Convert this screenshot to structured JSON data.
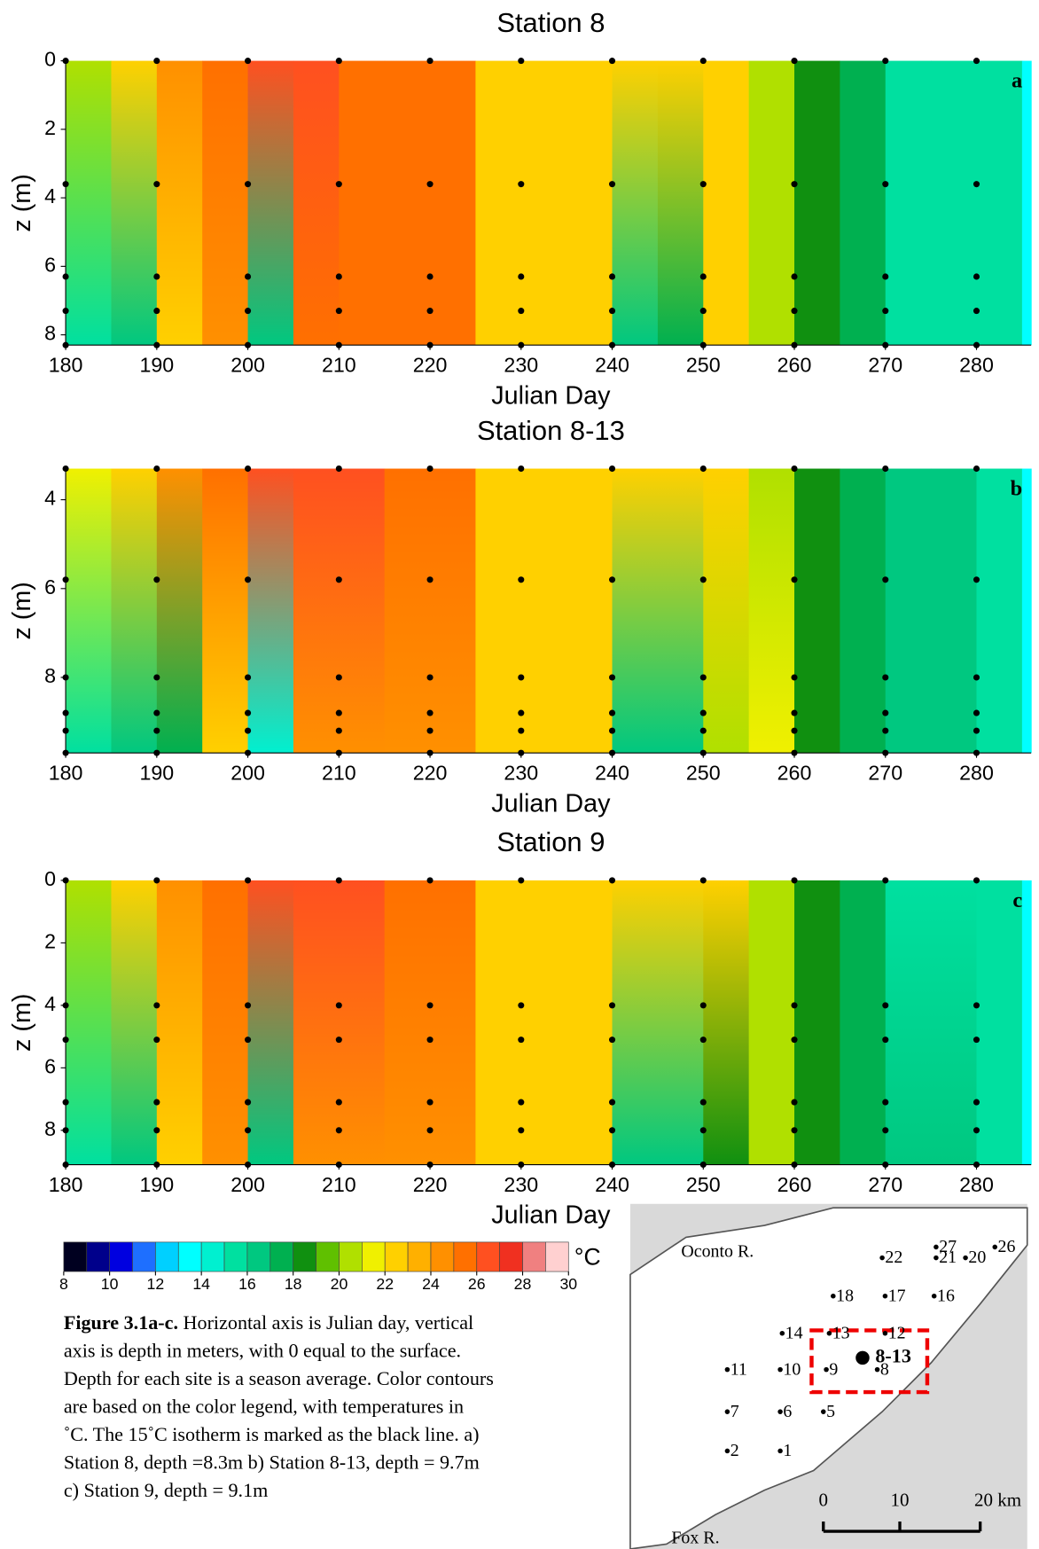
{
  "chart_data": [
    {
      "type": "heatmap",
      "title": "Station 8",
      "x_label": "Julian Day",
      "y_label": "z (m)",
      "panel_label": "a",
      "x": [
        180,
        185,
        190,
        195,
        200,
        205,
        210,
        215,
        220,
        225,
        230,
        235,
        240,
        245,
        250,
        255,
        260,
        265,
        270,
        275,
        280,
        285
      ],
      "depths": [
        0,
        8.3
      ],
      "values": [
        [
          20,
          23,
          24,
          25,
          26,
          26,
          25,
          25,
          25,
          23,
          22,
          22,
          22,
          22,
          22,
          20,
          18,
          17,
          15,
          15,
          15,
          13
        ],
        [
          15,
          16,
          22,
          24,
          16,
          25,
          25,
          25,
          25,
          23,
          22,
          22,
          16,
          17,
          22,
          20,
          18,
          17,
          15,
          15,
          15,
          13
        ]
      ],
      "xlim": [
        180,
        286
      ],
      "xticks": [
        180,
        190,
        200,
        210,
        220,
        230,
        240,
        250,
        260,
        270,
        280
      ],
      "ylim": [
        0,
        8.3
      ],
      "yticks": [
        0,
        2,
        4,
        6,
        8
      ],
      "sample_days": [
        180,
        190,
        200,
        210,
        220,
        230,
        240,
        250,
        260,
        270,
        280
      ],
      "sample_depths": [
        0,
        3.6,
        6.3,
        7.3,
        8.3
      ]
    },
    {
      "type": "heatmap",
      "title": "Station 8-13",
      "x_label": "Julian Day",
      "y_label": "z (m)",
      "panel_label": "b",
      "x": [
        180,
        185,
        190,
        195,
        200,
        205,
        210,
        215,
        220,
        225,
        230,
        235,
        240,
        245,
        250,
        255,
        260,
        265,
        270,
        275,
        280,
        285
      ],
      "depths": [
        3.3,
        9.7
      ],
      "values": [
        [
          21,
          22,
          24,
          25,
          26,
          26,
          26,
          25,
          25,
          23,
          22,
          22,
          23,
          23,
          22,
          20,
          18,
          17,
          16,
          16,
          15,
          13
        ],
        [
          15,
          16,
          17,
          22,
          14,
          24,
          24,
          24,
          24,
          22,
          22,
          22,
          16,
          16,
          20,
          21,
          18,
          17,
          16,
          16,
          15,
          13
        ]
      ],
      "xlim": [
        180,
        286
      ],
      "xticks": [
        180,
        190,
        200,
        210,
        220,
        230,
        240,
        250,
        260,
        270,
        280
      ],
      "ylim": [
        3.3,
        9.7
      ],
      "yticks": [
        4,
        6,
        8
      ],
      "sample_days": [
        180,
        190,
        200,
        210,
        220,
        230,
        240,
        250,
        260,
        270,
        280
      ],
      "sample_depths": [
        3.3,
        5.8,
        8,
        8.8,
        9.2,
        9.7
      ]
    },
    {
      "type": "heatmap",
      "title": "Station 9",
      "x_label": "Julian Day",
      "y_label": "z (m)",
      "panel_label": "c",
      "x": [
        180,
        185,
        190,
        195,
        200,
        205,
        210,
        215,
        220,
        225,
        230,
        235,
        240,
        245,
        250,
        255,
        260,
        265,
        270,
        275,
        280,
        285
      ],
      "depths": [
        0,
        9.1
      ],
      "values": [
        [
          20,
          23,
          24,
          25,
          26,
          26,
          26,
          25,
          25,
          23,
          22,
          22,
          22,
          22,
          22,
          20,
          18,
          17,
          15,
          15,
          15,
          13
        ],
        [
          15,
          16,
          22,
          24,
          16,
          24,
          24,
          24,
          24,
          22,
          22,
          22,
          16,
          16,
          18,
          20,
          18,
          17,
          16,
          16,
          15,
          13
        ]
      ],
      "xlim": [
        180,
        286
      ],
      "xticks": [
        180,
        190,
        200,
        210,
        220,
        230,
        240,
        250,
        260,
        270,
        280
      ],
      "ylim": [
        0,
        9.1
      ],
      "yticks": [
        0,
        2,
        4,
        6,
        8
      ],
      "sample_days": [
        180,
        190,
        200,
        210,
        220,
        230,
        240,
        250,
        260,
        270,
        280
      ],
      "sample_depths": [
        0,
        4,
        5.1,
        7.1,
        8,
        9.1
      ]
    }
  ],
  "colorbar": {
    "unit": "°C",
    "lim": [
      8,
      30
    ],
    "ticks": [
      8,
      10,
      12,
      14,
      16,
      18,
      20,
      22,
      24,
      26,
      28,
      30
    ],
    "colors": [
      "#000020",
      "#00008b",
      "#0000e0",
      "#1e6fff",
      "#00d0ff",
      "#00ffff",
      "#00f0d0",
      "#00e0a0",
      "#00c880",
      "#00b050",
      "#109010",
      "#60c000",
      "#b0e000",
      "#f0f000",
      "#ffd000",
      "#ffb000",
      "#ff9000",
      "#ff7000",
      "#ff5020",
      "#f03020",
      "#f08080",
      "#ffd0d0"
    ]
  },
  "caption": {
    "label": "Figure 3.1a-c.",
    "lines": [
      " Horizontal axis is Julian day, vertical",
      "axis is depth in meters, with 0 equal to the surface.",
      "Depth for each site is a season average. Color contours",
      "are based on the color legend, with temperatures in",
      "˚C. The 15˚C isotherm is marked as the black line. a)",
      "Station 8, depth =8.3m b) Station 8-13, depth = 9.7m",
      "c) Station 9, depth = 9.1m"
    ]
  },
  "map": {
    "rivers": [
      "Oconto R.",
      "Fox R."
    ],
    "highlight": "8-13",
    "stations": [
      "27",
      "26",
      "22",
      "21",
      "20",
      "18",
      "17",
      "16",
      "14",
      "13",
      "12",
      "11",
      "10",
      "9",
      "8",
      "7",
      "6",
      "5",
      "2",
      "1"
    ],
    "scale_labels": [
      "0",
      "10",
      "20 km"
    ]
  }
}
